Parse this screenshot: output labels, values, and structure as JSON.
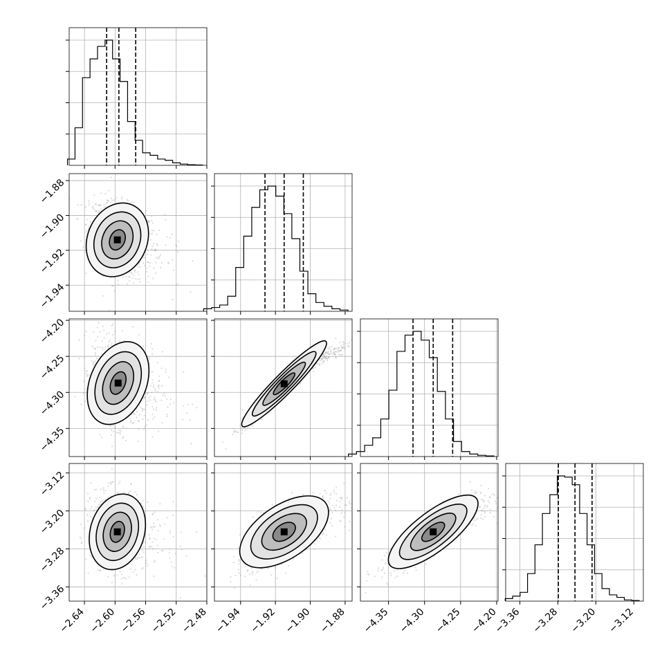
{
  "chart_data": {
    "type": "corner",
    "parameters": [
      {
        "ticks": [
          "−2.64",
          "−2.60",
          "−2.56",
          "−2.52",
          "−2.48"
        ],
        "tick_values": [
          -2.64,
          -2.6,
          -2.56,
          -2.52,
          -2.48
        ],
        "range": [
          -2.66,
          -2.48
        ],
        "quantiles": [
          -2.611,
          -2.595,
          -2.573
        ]
      },
      {
        "ticks": [
          "−1.94",
          "−1.92",
          "−1.90",
          "−1.88"
        ],
        "tick_values": [
          -1.94,
          -1.92,
          -1.9,
          -1.88
        ],
        "range": [
          -1.955,
          -1.876
        ],
        "quantiles": [
          -1.926,
          -1.915,
          -1.904
        ]
      },
      {
        "ticks": [
          "−4.35",
          "−4.30",
          "−4.25",
          "−4.20"
        ],
        "tick_values": [
          -4.35,
          -4.3,
          -4.25,
          -4.2
        ],
        "range": [
          -4.389,
          -4.198
        ],
        "quantiles": [
          -4.316,
          -4.288,
          -4.261
        ]
      },
      {
        "ticks": [
          "−3.36",
          "−3.28",
          "−3.20",
          "−3.12"
        ],
        "tick_values": [
          -3.36,
          -3.28,
          -3.2,
          -3.12
        ],
        "range": [
          -3.39,
          -3.1
        ],
        "quantiles": [
          -3.279,
          -3.244,
          -3.208
        ]
      }
    ],
    "histograms": [
      [
        0.05,
        0.3,
        0.7,
        0.85,
        0.95,
        1.0,
        0.85,
        0.67,
        0.35,
        0.2,
        0.1,
        0.08,
        0.05,
        0.04,
        0.02,
        0.01,
        0.005,
        0.003
      ],
      [
        0.02,
        0.03,
        0.05,
        0.12,
        0.35,
        0.6,
        0.83,
        0.97,
        1.0,
        0.92,
        0.78,
        0.58,
        0.32,
        0.14,
        0.07,
        0.04,
        0.02,
        0.01
      ],
      [
        0.02,
        0.04,
        0.09,
        0.15,
        0.3,
        0.53,
        0.84,
        0.97,
        1.0,
        0.93,
        0.79,
        0.52,
        0.3,
        0.12,
        0.04,
        0.02,
        0.01,
        0.005
      ],
      [
        0.02,
        0.04,
        0.07,
        0.22,
        0.45,
        0.7,
        0.85,
        1.0,
        0.99,
        0.93,
        0.7,
        0.45,
        0.22,
        0.1,
        0.05,
        0.03,
        0.01,
        0.005
      ]
    ],
    "pairs": [
      {
        "x": 0,
        "y": 1,
        "mean": [
          -2.597,
          -1.914
        ],
        "sd": [
          0.018,
          0.011
        ],
        "corr": -0.3
      },
      {
        "x": 0,
        "y": 2,
        "mean": [
          -2.596,
          -4.287
        ],
        "sd": [
          0.017,
          0.03
        ],
        "corr": -0.25
      },
      {
        "x": 1,
        "y": 2,
        "mean": [
          -1.915,
          -4.288
        ],
        "sd": [
          0.012,
          0.03
        ],
        "corr": 0.98
      },
      {
        "x": 0,
        "y": 3,
        "mean": [
          -2.597,
          -3.244
        ],
        "sd": [
          0.017,
          0.04
        ],
        "corr": -0.2
      },
      {
        "x": 1,
        "y": 3,
        "mean": [
          -1.915,
          -3.244
        ],
        "sd": [
          0.012,
          0.04
        ],
        "corr": 0.75
      },
      {
        "x": 2,
        "y": 3,
        "mean": [
          -4.288,
          -3.244
        ],
        "sd": [
          0.03,
          0.04
        ],
        "corr": 0.88
      }
    ],
    "contour_levels": [
      0.5,
      1.0,
      1.5,
      2.0
    ],
    "grid": true,
    "colors": {
      "hist": "#000000",
      "scatter": "#999999",
      "contour": "#000000",
      "grid": "#b0b0b0"
    }
  }
}
